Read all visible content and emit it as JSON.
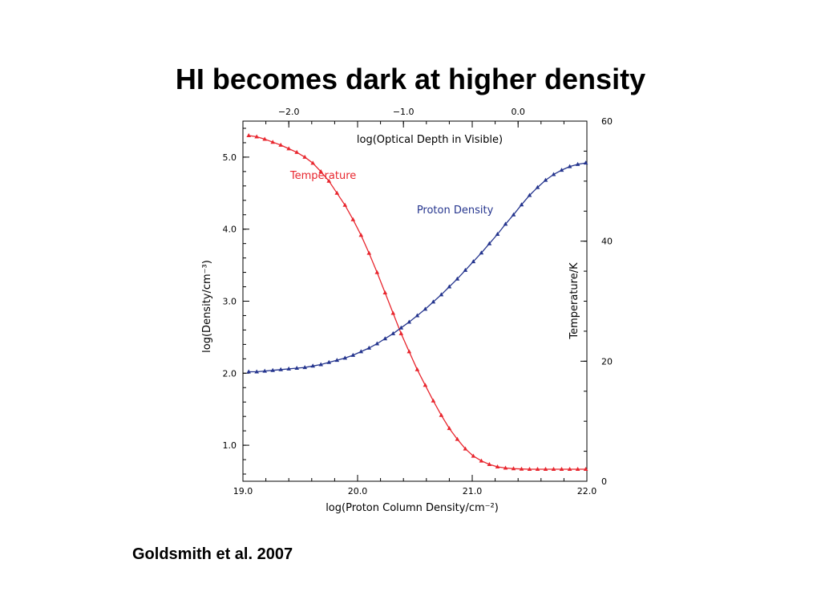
{
  "slide": {
    "title": "HI becomes dark at higher density",
    "citation": "Goldsmith et al. 2007"
  },
  "chart_data": {
    "type": "line",
    "title": "",
    "xlabel": "log(Proton Column Density/cm⁻²)",
    "ylabel": "log(Density/cm⁻³)",
    "y2label": "Temperature/K",
    "x2label": "log(Optical Depth in Visible)",
    "xlim": [
      19.0,
      22.0
    ],
    "ylim": [
      0.5,
      5.5
    ],
    "y2lim": [
      0,
      60
    ],
    "x2lim": [
      -2.4,
      0.6
    ],
    "x_ticks": [
      19.0,
      20.0,
      21.0,
      22.0
    ],
    "x_tick_labels": [
      "19.0",
      "20.0",
      "21.0",
      "22.0"
    ],
    "y_ticks": [
      1.0,
      2.0,
      3.0,
      4.0,
      5.0
    ],
    "y_tick_labels": [
      "1.0",
      "2.0",
      "3.0",
      "4.0",
      "5.0"
    ],
    "y2_ticks": [
      0,
      20,
      40,
      60
    ],
    "y2_tick_labels": [
      "0",
      "20",
      "40",
      "60"
    ],
    "x2_ticks": [
      -2.0,
      -1.0,
      0.0
    ],
    "x2_tick_labels": [
      "−2.0",
      "−1.0",
      "0.0"
    ],
    "grid": false,
    "series": [
      {
        "name": "Temperature",
        "axis": "y2",
        "color": "#e8262e",
        "marker": "triangle",
        "label_at": [
          19.7,
          50.4
        ],
        "x": [
          19.05,
          19.12,
          19.19,
          19.26,
          19.33,
          19.4,
          19.47,
          19.54,
          19.61,
          19.68,
          19.75,
          19.82,
          19.89,
          19.96,
          20.03,
          20.1,
          20.17,
          20.24,
          20.31,
          20.38,
          20.45,
          20.52,
          20.59,
          20.66,
          20.73,
          20.8,
          20.87,
          20.94,
          21.01,
          21.08,
          21.15,
          21.22,
          21.29,
          21.36,
          21.43,
          21.5,
          21.57,
          21.64,
          21.71,
          21.78,
          21.85,
          21.92,
          21.99
        ],
        "y": [
          57.6,
          57.4,
          57.0,
          56.5,
          56.0,
          55.4,
          54.8,
          54.0,
          53.0,
          51.6,
          50.0,
          48.0,
          46.0,
          43.6,
          41.0,
          38.0,
          34.8,
          31.4,
          28.0,
          24.6,
          21.6,
          18.6,
          16.0,
          13.4,
          11.0,
          8.8,
          7.0,
          5.4,
          4.2,
          3.4,
          2.8,
          2.4,
          2.2,
          2.1,
          2.05,
          2.0,
          2.0,
          2.0,
          2.0,
          2.0,
          2.0,
          2.0,
          2.0
        ]
      },
      {
        "name": "Proton Density",
        "axis": "y",
        "color": "#25358e",
        "marker": "triangle",
        "label_at": [
          20.85,
          4.22
        ],
        "x": [
          19.05,
          19.12,
          19.19,
          19.26,
          19.33,
          19.4,
          19.47,
          19.54,
          19.61,
          19.68,
          19.75,
          19.82,
          19.89,
          19.96,
          20.03,
          20.1,
          20.17,
          20.24,
          20.31,
          20.38,
          20.45,
          20.52,
          20.59,
          20.66,
          20.73,
          20.8,
          20.87,
          20.94,
          21.01,
          21.08,
          21.15,
          21.22,
          21.29,
          21.36,
          21.43,
          21.5,
          21.57,
          21.64,
          21.71,
          21.78,
          21.85,
          21.92,
          21.99
        ],
        "y": [
          2.02,
          2.02,
          2.03,
          2.04,
          2.05,
          2.06,
          2.07,
          2.08,
          2.1,
          2.12,
          2.15,
          2.18,
          2.21,
          2.25,
          2.3,
          2.35,
          2.41,
          2.48,
          2.55,
          2.63,
          2.71,
          2.8,
          2.89,
          2.99,
          3.09,
          3.2,
          3.31,
          3.43,
          3.55,
          3.67,
          3.8,
          3.93,
          4.07,
          4.2,
          4.34,
          4.47,
          4.58,
          4.68,
          4.76,
          4.82,
          4.87,
          4.9,
          4.92
        ]
      }
    ]
  }
}
